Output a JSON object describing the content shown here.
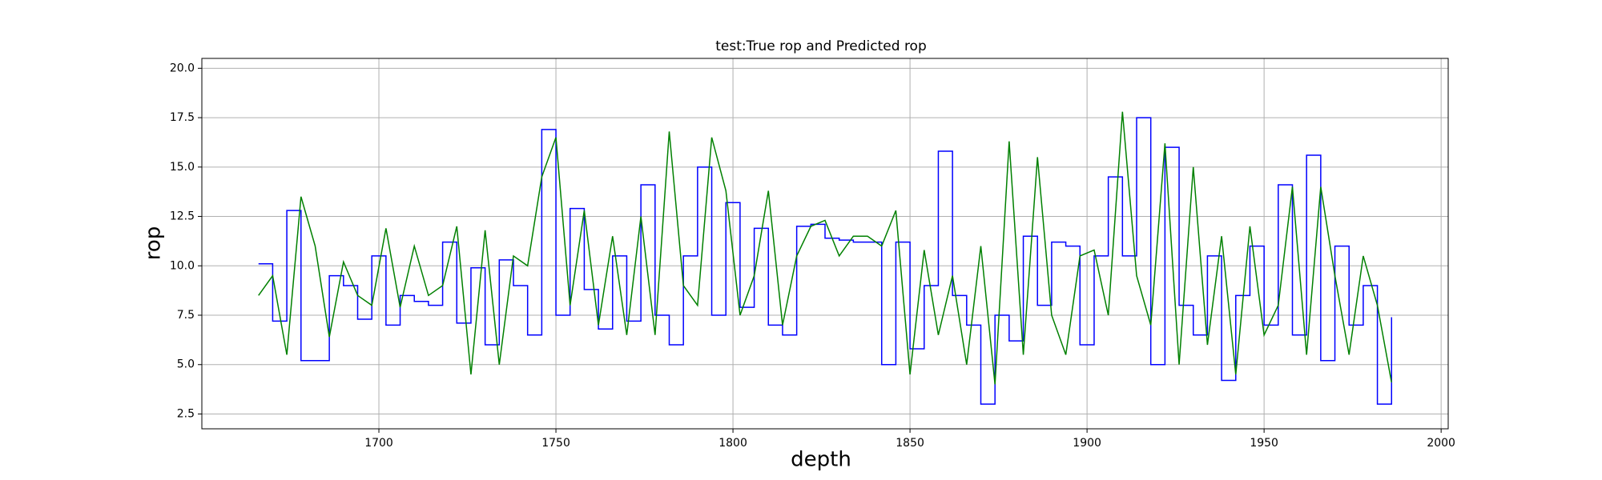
{
  "chart_data": {
    "type": "line",
    "title": "test:True rop and Predicted rop",
    "xlabel": "depth",
    "ylabel": "rop",
    "x": [
      1666,
      1670,
      1674,
      1678,
      1682,
      1686,
      1690,
      1694,
      1698,
      1702,
      1706,
      1710,
      1714,
      1718,
      1722,
      1726,
      1730,
      1734,
      1738,
      1742,
      1746,
      1750,
      1754,
      1758,
      1762,
      1766,
      1770,
      1774,
      1778,
      1782,
      1786,
      1790,
      1794,
      1798,
      1802,
      1806,
      1810,
      1814,
      1818,
      1822,
      1826,
      1830,
      1834,
      1838,
      1842,
      1846,
      1850,
      1854,
      1858,
      1862,
      1866,
      1870,
      1874,
      1878,
      1882,
      1886,
      1890,
      1894,
      1898,
      1902,
      1906,
      1910,
      1914,
      1918,
      1922,
      1926,
      1930,
      1934,
      1938,
      1942,
      1946,
      1950,
      1954,
      1958,
      1962,
      1966,
      1970,
      1974,
      1978,
      1982,
      1986
    ],
    "series": [
      {
        "color": "#0000ff",
        "drawstyle": "steps-post",
        "values": [
          10.1,
          7.2,
          12.8,
          5.2,
          5.2,
          9.5,
          9.0,
          7.3,
          10.5,
          7.0,
          8.5,
          8.2,
          8.0,
          11.2,
          7.1,
          9.9,
          6.0,
          10.3,
          9.0,
          6.5,
          16.9,
          7.5,
          12.9,
          8.8,
          6.8,
          10.5,
          7.2,
          14.1,
          7.5,
          6.0,
          10.5,
          15.0,
          7.5,
          13.2,
          7.9,
          11.9,
          7.0,
          6.5,
          12.0,
          12.1,
          11.4,
          11.3,
          11.2,
          11.2,
          5.0,
          11.2,
          5.8,
          9.0,
          15.8,
          8.5,
          7.0,
          3.0,
          7.5,
          6.2,
          11.5,
          8.0,
          11.2,
          11.0,
          6.0,
          10.5,
          14.5,
          10.5,
          17.5,
          5.0,
          16.0,
          8.0,
          6.5,
          10.5,
          4.2,
          8.5,
          11.0,
          7.0,
          14.1,
          6.5,
          15.6,
          5.2,
          11.0,
          7.0,
          9.0,
          3.0,
          7.4
        ]
      },
      {
        "color": "#008000",
        "drawstyle": "default",
        "values": [
          8.5,
          9.5,
          5.5,
          13.5,
          11.0,
          6.4,
          10.2,
          8.5,
          8.0,
          11.9,
          7.9,
          11.0,
          8.5,
          9.0,
          12.0,
          4.5,
          11.8,
          5.0,
          10.5,
          10.0,
          14.5,
          16.5,
          8.0,
          12.8,
          7.0,
          11.5,
          6.5,
          12.5,
          6.5,
          16.8,
          9.0,
          8.0,
          16.5,
          13.8,
          7.5,
          9.5,
          13.8,
          7.0,
          10.5,
          12.0,
          12.3,
          10.5,
          11.5,
          11.5,
          11.0,
          12.8,
          4.5,
          10.8,
          6.5,
          9.5,
          5.0,
          11.0,
          4.0,
          16.3,
          5.5,
          15.5,
          7.5,
          5.5,
          10.5,
          10.8,
          7.5,
          17.8,
          9.5,
          7.0,
          16.2,
          5.0,
          15.0,
          6.0,
          11.5,
          4.5,
          12.0,
          6.5,
          8.0,
          14.0,
          5.5,
          14.0,
          9.5,
          5.5,
          10.5,
          8.0,
          4.1
        ]
      }
    ],
    "xlim": [
      1650,
      2002
    ],
    "ylim": [
      1.75,
      20.5
    ],
    "xticks": [
      1700,
      1750,
      1800,
      1850,
      1900,
      1950,
      2000
    ],
    "yticks": [
      2.5,
      {
        "value": 5,
        "label": "5.0"
      },
      7.5,
      {
        "value": 10,
        "label": "10.0"
      },
      12.5,
      {
        "value": 15,
        "label": "15.0"
      },
      17.5,
      {
        "value": 20,
        "label": "20.0"
      }
    ],
    "grid": true
  }
}
